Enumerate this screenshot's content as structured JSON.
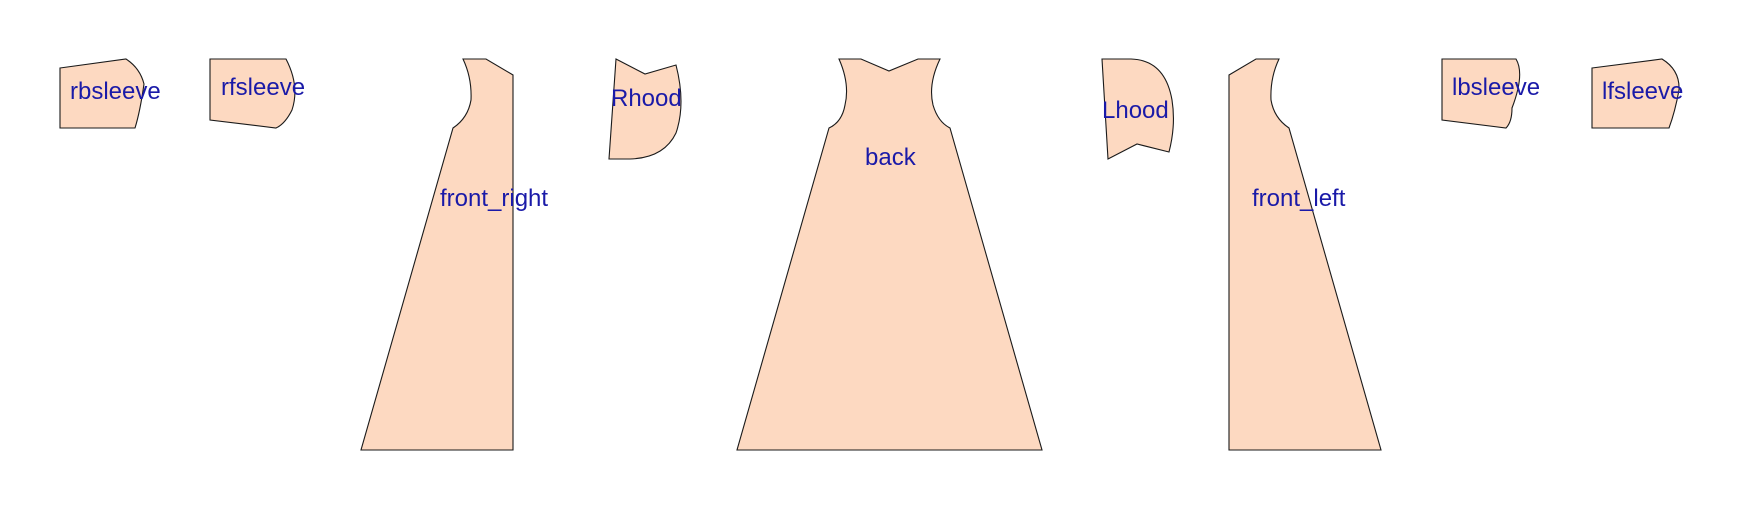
{
  "pieces": {
    "rbsleeve": {
      "label": "rbsleeve"
    },
    "rfsleeve": {
      "label": "rfsleeve"
    },
    "front_right": {
      "label": "front_right"
    },
    "rhood": {
      "label": "Rhood"
    },
    "back": {
      "label": "back"
    },
    "lhood": {
      "label": "Lhood"
    },
    "front_left": {
      "label": "front_left"
    },
    "lbsleeve": {
      "label": "lbsleeve"
    },
    "lfsleeve": {
      "label": "lfsleeve"
    }
  },
  "colors": {
    "fill": "#fdd9c1",
    "outline": "#1a1a1a",
    "label": "#1a1aa8"
  }
}
